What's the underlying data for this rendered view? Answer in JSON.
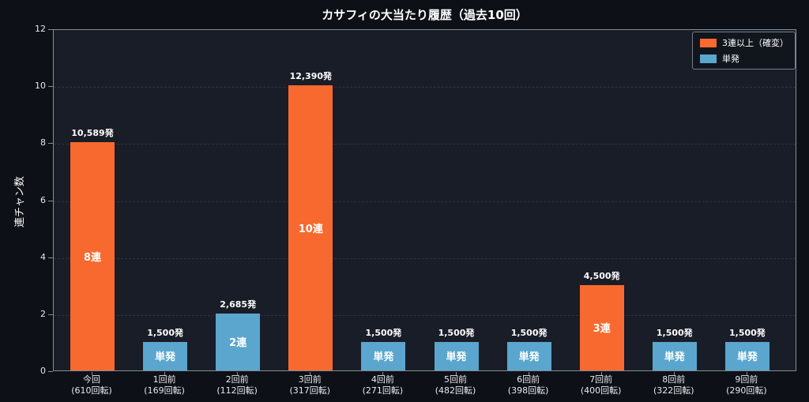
{
  "colors": {
    "figure_bg": "#0d1117",
    "plot_bg": "#191d27",
    "spine": "#848b98",
    "grid": "#2d3340",
    "text": "#ffffff",
    "orange": "#f8692f",
    "blue": "#5aa6ce"
  },
  "legend": {
    "items": [
      {
        "label": "3連以上（確変）",
        "color": "#f8692f"
      },
      {
        "label": "単発",
        "color": "#5aa6ce"
      }
    ]
  },
  "chart_data": {
    "type": "bar",
    "title": "カサフィの大当たり履歴（過去10回）",
    "xlabel": "",
    "ylabel": "連チャン数",
    "ylim": [
      0,
      12
    ],
    "yticks": [
      0,
      2,
      4,
      6,
      8,
      10,
      12
    ],
    "grid": "horizontal-dashed",
    "legend_position": "upper-right",
    "bars": [
      {
        "category": "今回",
        "spins": "(610回転)",
        "value": 8,
        "payout_label": "10,589発",
        "chain_label": "8連",
        "series": "3連以上（確変）",
        "color": "#f8692f"
      },
      {
        "category": "1回前",
        "spins": "(169回転)",
        "value": 1,
        "payout_label": "1,500発",
        "chain_label": "単発",
        "series": "単発",
        "color": "#5aa6ce"
      },
      {
        "category": "2回前",
        "spins": "(112回転)",
        "value": 2,
        "payout_label": "2,685発",
        "chain_label": "2連",
        "series": "単発",
        "color": "#5aa6ce"
      },
      {
        "category": "3回前",
        "spins": "(317回転)",
        "value": 10,
        "payout_label": "12,390発",
        "chain_label": "10連",
        "series": "3連以上（確変）",
        "color": "#f8692f"
      },
      {
        "category": "4回前",
        "spins": "(271回転)",
        "value": 1,
        "payout_label": "1,500発",
        "chain_label": "単発",
        "series": "単発",
        "color": "#5aa6ce"
      },
      {
        "category": "5回前",
        "spins": "(482回転)",
        "value": 1,
        "payout_label": "1,500発",
        "chain_label": "単発",
        "series": "単発",
        "color": "#5aa6ce"
      },
      {
        "category": "6回前",
        "spins": "(398回転)",
        "value": 1,
        "payout_label": "1,500発",
        "chain_label": "単発",
        "series": "単発",
        "color": "#5aa6ce"
      },
      {
        "category": "7回前",
        "spins": "(400回転)",
        "value": 3,
        "payout_label": "4,500発",
        "chain_label": "3連",
        "series": "3連以上（確変）",
        "color": "#f8692f"
      },
      {
        "category": "8回前",
        "spins": "(322回転)",
        "value": 1,
        "payout_label": "1,500発",
        "chain_label": "単発",
        "series": "単発",
        "color": "#5aa6ce"
      },
      {
        "category": "9回前",
        "spins": "(290回転)",
        "value": 1,
        "payout_label": "1,500発",
        "chain_label": "単発",
        "series": "単発",
        "color": "#5aa6ce"
      }
    ]
  }
}
